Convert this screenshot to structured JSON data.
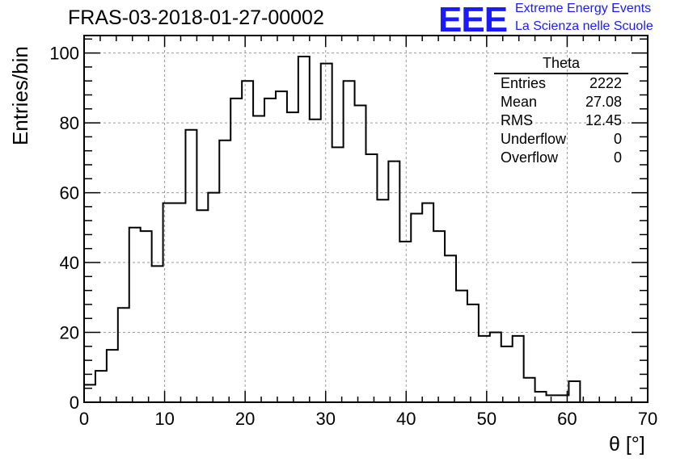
{
  "title": "FRAS-03-2018-01-27-00002",
  "logo": {
    "mark": "EEE",
    "line1": "Extreme Energy Events",
    "line2": "La Scienza nelle Scuole"
  },
  "stats": {
    "title": "Theta",
    "rows": [
      {
        "label": "Entries",
        "value": "2222"
      },
      {
        "label": "Mean",
        "value": "27.08"
      },
      {
        "label": "RMS",
        "value": "12.45"
      },
      {
        "label": "Underflow",
        "value": "0"
      },
      {
        "label": "Overflow",
        "value": "0"
      }
    ]
  },
  "chart_data": {
    "type": "bar",
    "style": "step-histogram",
    "title": "FRAS-03-2018-01-27-00002",
    "xlabel": "θ [°]",
    "ylabel": "Entries/bin",
    "xlim": [
      0,
      70
    ],
    "ylim": [
      0,
      105
    ],
    "bin_width": 1.4,
    "bin_start": 0,
    "values": [
      5,
      9,
      15,
      27,
      50,
      49,
      39,
      57,
      57,
      78,
      55,
      60,
      75,
      87,
      92,
      82,
      87,
      89,
      83,
      99,
      81,
      97,
      73,
      92,
      85,
      71,
      58,
      69,
      46,
      54,
      57,
      49,
      42,
      32,
      28,
      19,
      20,
      16,
      19,
      7,
      3,
      2,
      2,
      6,
      0,
      0,
      0,
      0,
      0,
      0
    ],
    "x_ticks": [
      "0",
      "10",
      "20",
      "30",
      "40",
      "50",
      "60",
      "70"
    ],
    "y_ticks": [
      "0",
      "20",
      "40",
      "60",
      "80",
      "100"
    ],
    "grid": true,
    "line_color": "#000000",
    "grid_color": "#9a9a9a"
  }
}
